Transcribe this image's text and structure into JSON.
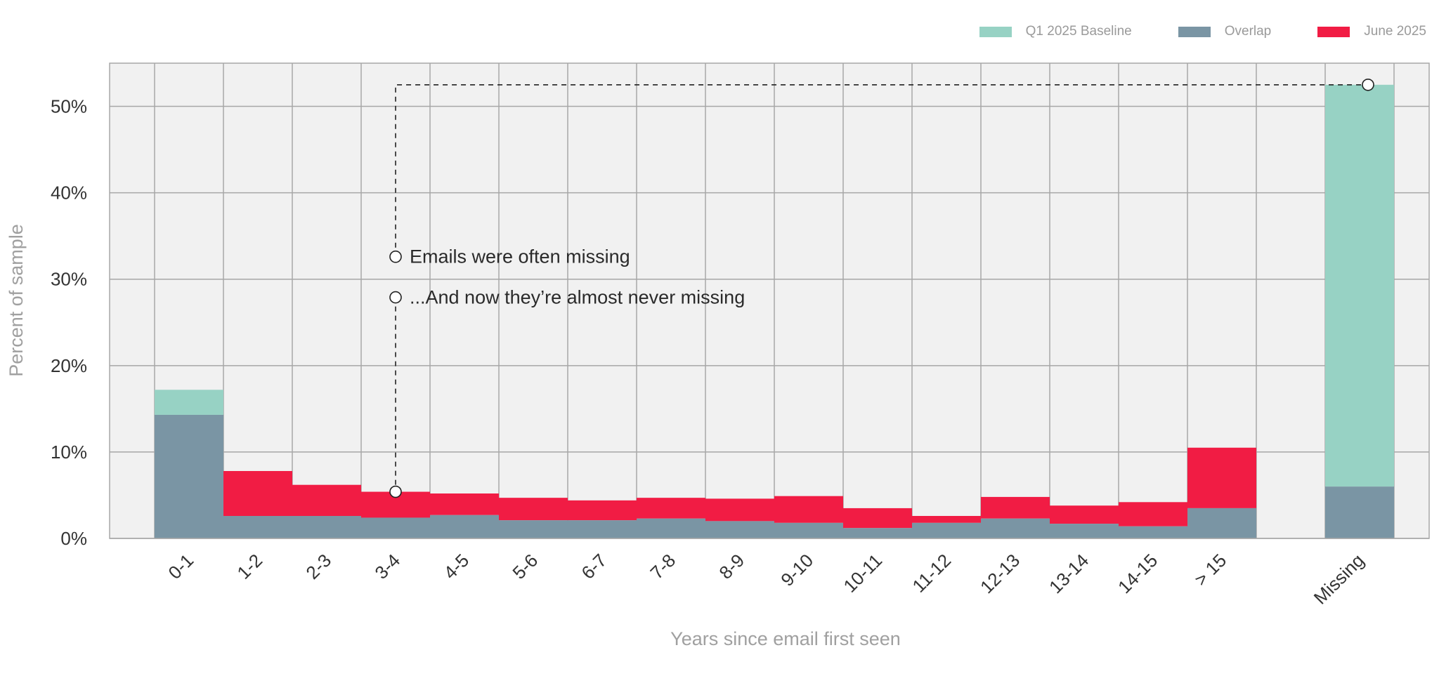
{
  "colors": {
    "baseline": "#97d2c4",
    "overlap": "#7a95a4",
    "june": "#f11c44",
    "plot_bg": "#f1f1f1",
    "grid": "#a7a7a7"
  },
  "legend": [
    {
      "label": "Q1 2025 Baseline",
      "color": "#97d2c4"
    },
    {
      "label": "Overlap",
      "color": "#7a95a4"
    },
    {
      "label": "June 2025",
      "color": "#f11c44"
    }
  ],
  "chart_data": {
    "type": "bar",
    "xlabel": "Years since email first seen",
    "ylabel": "Percent of sample",
    "ylim": [
      0,
      55
    ],
    "yticks": [
      "0%",
      "10%",
      "20%",
      "30%",
      "40%",
      "50%"
    ],
    "grid": true,
    "legend_position": "top-right",
    "categories": [
      "0-1",
      "1-2",
      "2-3",
      "3-4",
      "4-5",
      "5-6",
      "6-7",
      "7-8",
      "8-9",
      "9-10",
      "10-11",
      "11-12",
      "12-13",
      "13-14",
      "14-15",
      "> 15",
      "Missing"
    ],
    "series": [
      {
        "name": "Q1 2025 Baseline",
        "values": [
          17.2,
          2.6,
          2.6,
          2.4,
          2.7,
          2.1,
          2.1,
          2.3,
          2.0,
          1.8,
          1.2,
          1.8,
          2.3,
          1.7,
          1.4,
          3.5,
          52.5
        ]
      },
      {
        "name": "June 2025",
        "values": [
          14.3,
          7.8,
          6.2,
          5.4,
          5.2,
          4.7,
          4.4,
          4.7,
          4.6,
          4.9,
          3.5,
          2.6,
          4.8,
          3.8,
          4.2,
          10.5,
          6.0
        ]
      }
    ],
    "annotations": [
      {
        "text": "Emails were often missing"
      },
      {
        "text": "...And now they’re almost never missing"
      }
    ]
  }
}
